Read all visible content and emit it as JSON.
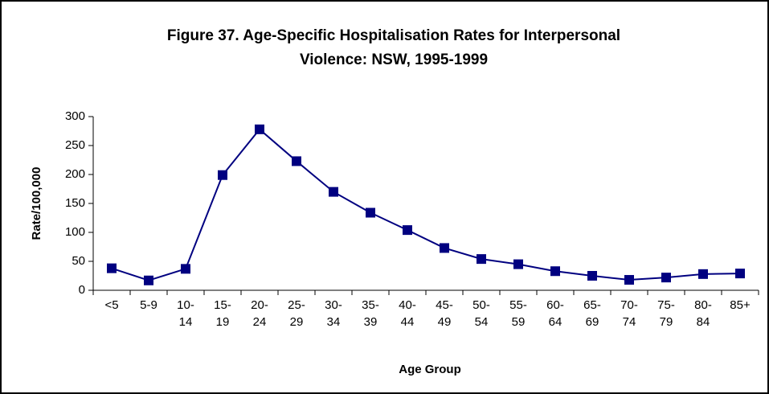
{
  "chart_data": {
    "type": "line",
    "title": [
      "Figure 37.  Age-Specific Hospitalisation Rates for Interpersonal",
      "Violence: NSW, 1995-1999"
    ],
    "x_label": "Age Group",
    "y_label": "Rate/100,000",
    "categories": [
      "<5",
      "5-9",
      "10- 14",
      "15- 19",
      "20- 24",
      "25- 29",
      "30- 34",
      "35- 39",
      "40- 44",
      "45- 49",
      "50- 54",
      "55- 59",
      "60- 64",
      "65- 69",
      "70- 74",
      "75- 79",
      "80- 84",
      "85+"
    ],
    "values": [
      38,
      17,
      37,
      199,
      278,
      223,
      170,
      134,
      104,
      73,
      54,
      45,
      33,
      25,
      18,
      22,
      28,
      29
    ],
    "color": "#000080",
    "ylim": [
      0,
      300
    ],
    "yticks": [
      0,
      50,
      100,
      150,
      200,
      250,
      300
    ]
  }
}
